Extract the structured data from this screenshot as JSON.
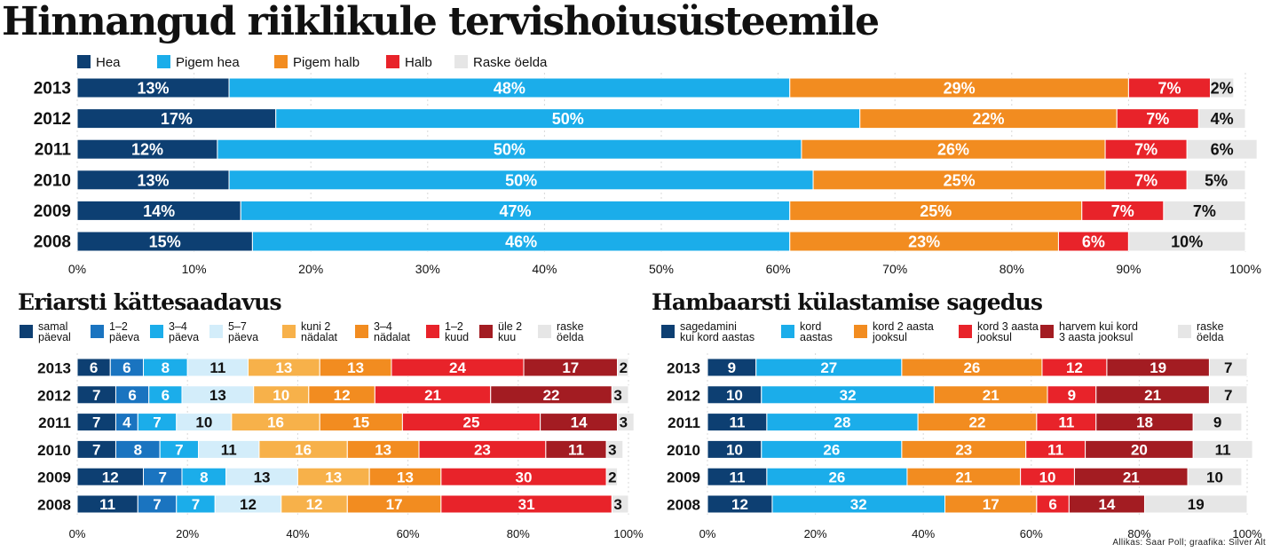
{
  "title": "Hinnangud riiklikule tervishoiusüsteemile",
  "source": "Allikas: Saar Poll; graafika: Silver Alt",
  "chart_data": [
    {
      "type": "bar",
      "orientation": "horizontal",
      "stacked": true,
      "title": "Hinnangud riiklikule tervishoiusüsteemile",
      "categories": [
        "2013",
        "2012",
        "2011",
        "2010",
        "2009",
        "2008"
      ],
      "series": [
        {
          "name": "Hea",
          "color": "#0d3f72",
          "values": [
            13,
            17,
            12,
            13,
            14,
            15
          ]
        },
        {
          "name": "Pigem hea",
          "color": "#1badea",
          "values": [
            48,
            50,
            50,
            50,
            47,
            46
          ]
        },
        {
          "name": "Pigem halb",
          "color": "#f28c20",
          "values": [
            29,
            22,
            26,
            25,
            25,
            23
          ]
        },
        {
          "name": "Halb",
          "color": "#e8232a",
          "values": [
            7,
            7,
            7,
            7,
            7,
            6
          ]
        },
        {
          "name": "Raske öelda",
          "color": "#e6e6e6",
          "values": [
            2,
            4,
            6,
            5,
            7,
            10
          ]
        }
      ],
      "xlim": [
        0,
        100
      ],
      "ticks": [
        "0%",
        "10%",
        "20%",
        "30%",
        "40%",
        "50%",
        "60%",
        "70%",
        "80%",
        "90%",
        "100%"
      ],
      "value_suffix": "%",
      "legend": "top"
    },
    {
      "type": "bar",
      "orientation": "horizontal",
      "stacked": true,
      "title": "Eriarsti kättesaadavus",
      "categories": [
        "2013",
        "2012",
        "2011",
        "2010",
        "2009",
        "2008"
      ],
      "series": [
        {
          "name": [
            "samal",
            "päeval"
          ],
          "color": "#0d3f72",
          "values": [
            6,
            7,
            7,
            7,
            12,
            11
          ]
        },
        {
          "name": [
            "1–2",
            "päeva"
          ],
          "color": "#1a74c0",
          "values": [
            6,
            6,
            4,
            8,
            7,
            7
          ]
        },
        {
          "name": [
            "3–4",
            "päeva"
          ],
          "color": "#1badea",
          "values": [
            8,
            6,
            7,
            7,
            8,
            7
          ]
        },
        {
          "name": [
            "5–7",
            "päeva"
          ],
          "color": "#d3edfa",
          "values": [
            11,
            13,
            10,
            11,
            13,
            12
          ]
        },
        {
          "name": [
            "kuni 2",
            "nädalat"
          ],
          "color": "#f7b14a",
          "values": [
            13,
            10,
            16,
            16,
            13,
            12
          ]
        },
        {
          "name": [
            "3–4",
            "nädalat"
          ],
          "color": "#f28c20",
          "values": [
            13,
            12,
            15,
            13,
            13,
            17
          ]
        },
        {
          "name": [
            "1–2",
            "kuud"
          ],
          "color": "#e8232a",
          "values": [
            24,
            21,
            25,
            23,
            30,
            31
          ]
        },
        {
          "name": [
            "üle 2",
            "kuu"
          ],
          "color": "#a31c22",
          "values": [
            17,
            22,
            14,
            11,
            0,
            0
          ]
        },
        {
          "name": [
            "raske",
            "öelda"
          ],
          "color": "#e6e6e6",
          "values": [
            2,
            3,
            3,
            3,
            2,
            3
          ]
        }
      ],
      "xlim": [
        0,
        100
      ],
      "ticks": [
        "0%",
        "20%",
        "40%",
        "60%",
        "80%",
        "100%"
      ],
      "legend": "top"
    },
    {
      "type": "bar",
      "orientation": "horizontal",
      "stacked": true,
      "title": "Hambaarsti külastamise sagedus",
      "categories": [
        "2013",
        "2012",
        "2011",
        "2010",
        "2009",
        "2008"
      ],
      "series": [
        {
          "name": [
            "sagedamini",
            "kui kord aastas"
          ],
          "color": "#0d3f72",
          "values": [
            9,
            10,
            11,
            10,
            11,
            12
          ]
        },
        {
          "name": [
            "kord",
            "aastas"
          ],
          "color": "#1badea",
          "values": [
            27,
            32,
            28,
            26,
            26,
            32
          ]
        },
        {
          "name": [
            "kord 2 aasta",
            "jooksul"
          ],
          "color": "#f28c20",
          "values": [
            26,
            21,
            22,
            23,
            21,
            17
          ]
        },
        {
          "name": [
            "kord 3 aasta",
            "jooksul"
          ],
          "color": "#e8232a",
          "values": [
            12,
            9,
            11,
            11,
            10,
            6
          ]
        },
        {
          "name": [
            "harvem kui kord",
            "3 aasta jooksul"
          ],
          "color": "#a31c22",
          "values": [
            19,
            21,
            18,
            20,
            21,
            14
          ]
        },
        {
          "name": [
            "raske",
            "öelda"
          ],
          "color": "#e6e6e6",
          "values": [
            7,
            7,
            9,
            11,
            10,
            19
          ]
        }
      ],
      "xlim": [
        0,
        100
      ],
      "ticks": [
        "0%",
        "20%",
        "40%",
        "60%",
        "80%",
        "100%"
      ],
      "legend": "top"
    }
  ]
}
